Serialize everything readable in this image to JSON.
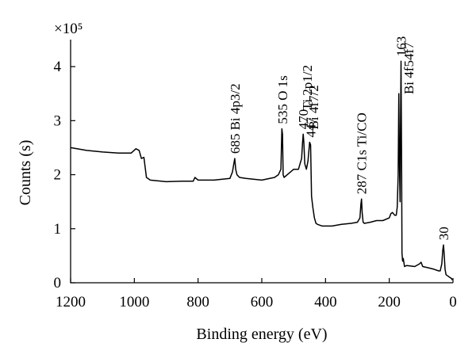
{
  "chart_data": {
    "type": "line",
    "title": "",
    "xlabel": "Binding energy (eV)",
    "ylabel": "Counts (s)",
    "y_multiplier": "×10⁵",
    "xlim": [
      1200,
      0
    ],
    "ylim": [
      0,
      4.5
    ],
    "x_reversed": true,
    "grid": false,
    "legend": "none",
    "line_color": "#000000",
    "x_ticks": [
      {
        "value": 1200,
        "label": "1200"
      },
      {
        "value": 1000,
        "label": "1000"
      },
      {
        "value": 800,
        "label": "800"
      },
      {
        "value": 600,
        "label": "600"
      },
      {
        "value": 400,
        "label": "400"
      },
      {
        "value": 200,
        "label": "200"
      },
      {
        "value": 0,
        "label": "0"
      }
    ],
    "y_ticks": [
      {
        "value": 0,
        "label": "0"
      },
      {
        "value": 1,
        "label": "1"
      },
      {
        "value": 2,
        "label": "2"
      },
      {
        "value": 3,
        "label": "3"
      },
      {
        "value": 4,
        "label": "4"
      }
    ],
    "series": [
      {
        "x": [
          1200,
          1150,
          1100,
          1050,
          1010,
          995,
          985,
          978,
          970,
          962,
          950,
          900,
          850,
          815,
          810,
          800,
          750,
          700,
          692,
          688,
          685,
          682,
          678,
          670,
          650,
          600,
          560,
          548,
          540,
          537,
          535,
          533,
          530,
          520,
          500,
          485,
          475,
          472,
          470,
          468,
          465,
          460,
          455,
          450,
          447,
          444,
          440,
          435,
          430,
          425,
          410,
          400,
          380,
          350,
          320,
          300,
          292,
          289,
          287,
          285,
          282,
          278,
          260,
          240,
          220,
          200,
          195,
          190,
          183,
          178,
          175,
          172,
          170,
          168,
          166,
          165,
          163,
          161,
          160,
          158,
          156,
          152,
          145,
          120,
          105,
          100,
          95,
          80,
          60,
          45,
          40,
          35,
          32,
          30,
          28,
          25,
          22,
          15,
          10,
          5,
          2
        ],
        "y": [
          2.5,
          2.45,
          2.42,
          2.4,
          2.4,
          2.48,
          2.45,
          2.3,
          2.32,
          1.95,
          1.9,
          1.87,
          1.88,
          1.88,
          1.95,
          1.9,
          1.9,
          1.93,
          2.05,
          2.2,
          2.3,
          2.1,
          2.0,
          1.95,
          1.93,
          1.9,
          1.95,
          2.0,
          2.1,
          2.85,
          2.75,
          2.0,
          1.95,
          2.0,
          2.1,
          2.1,
          2.3,
          2.6,
          2.75,
          2.6,
          2.2,
          2.1,
          2.25,
          2.6,
          2.55,
          1.6,
          1.4,
          1.2,
          1.1,
          1.08,
          1.05,
          1.05,
          1.05,
          1.08,
          1.1,
          1.12,
          1.2,
          1.45,
          1.55,
          1.3,
          1.12,
          1.1,
          1.12,
          1.15,
          1.15,
          1.2,
          1.28,
          1.3,
          1.25,
          1.25,
          1.4,
          2.0,
          3.5,
          2.2,
          1.5,
          2.6,
          4.1,
          2.0,
          0.55,
          0.4,
          0.45,
          0.3,
          0.32,
          0.3,
          0.35,
          0.38,
          0.3,
          0.28,
          0.25,
          0.22,
          0.22,
          0.35,
          0.6,
          0.7,
          0.55,
          0.25,
          0.15,
          0.12,
          0.1,
          0.08,
          0.05
        ]
      }
    ],
    "annotations": [
      {
        "x": 685,
        "y": 2.3,
        "text": "685 Bi 4p3/2"
      },
      {
        "x": 535,
        "y": 2.85,
        "text": "535 O 1s"
      },
      {
        "x": 470,
        "y": 2.75,
        "text": "470"
      },
      {
        "x": 447,
        "y": 2.6,
        "text": "447"
      },
      {
        "x": 458,
        "y": 3.1,
        "text": "Ti 2p1/2"
      },
      {
        "x": 438,
        "y": 2.75,
        "text": "Bi 4f7/2"
      },
      {
        "x": 287,
        "y": 1.55,
        "text": "287 C1s Ti/CO"
      },
      {
        "x": 163,
        "y": 4.1,
        "text": "163"
      },
      {
        "x": 140,
        "y": 3.4,
        "text": "Bi 4f54f7"
      },
      {
        "x": 30,
        "y": 0.7,
        "text": "30"
      }
    ]
  }
}
